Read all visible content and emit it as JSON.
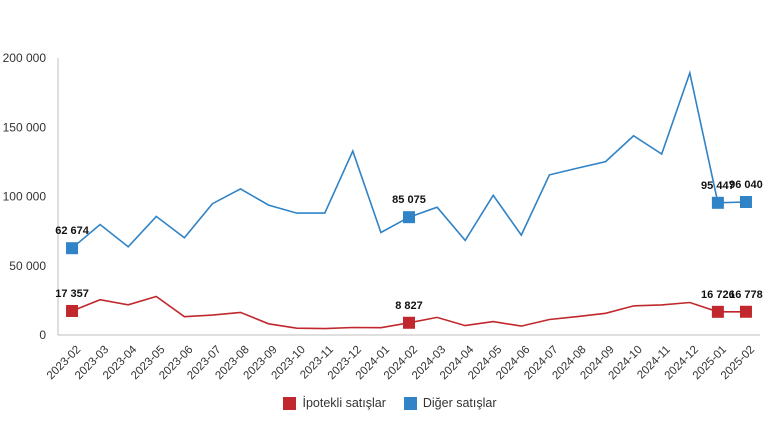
{
  "chart_data": {
    "type": "line",
    "categories": [
      "2023-02",
      "2023-03",
      "2023-04",
      "2023-05",
      "2023-06",
      "2023-07",
      "2023-08",
      "2023-09",
      "2023-10",
      "2023-11",
      "2023-12",
      "2024-01",
      "2024-02",
      "2024-03",
      "2024-04",
      "2024-05",
      "2024-06",
      "2024-07",
      "2024-08",
      "2024-09",
      "2024-10",
      "2024-11",
      "2024-12",
      "2025-01",
      "2025-02"
    ],
    "ylim": [
      0,
      200000
    ],
    "yticks": [
      0,
      50000,
      100000,
      150000,
      200000
    ],
    "ytick_labels": [
      "0",
      "50 000",
      "100 000",
      "150 000",
      "200 000"
    ],
    "grid": false,
    "legend_position": "bottom",
    "series": [
      {
        "name": "İpotekli satışlar",
        "color": "#c0282d",
        "values": [
          17357,
          25500,
          21800,
          27800,
          13200,
          14400,
          16300,
          8100,
          4900,
          4600,
          5400,
          5300,
          8827,
          12700,
          6800,
          9700,
          6400,
          11200,
          13300,
          15700,
          21000,
          21700,
          23500,
          16726,
          16778
        ],
        "labels": [
          {
            "index": 0,
            "text": "17 357"
          },
          {
            "index": 12,
            "text": "8 827"
          },
          {
            "index": 23,
            "text": "16 726"
          },
          {
            "index": 24,
            "text": "16 778"
          }
        ]
      },
      {
        "name": "Diğer satışlar",
        "color": "#2f83c6",
        "values": [
          62674,
          79800,
          63700,
          85600,
          70200,
          94800,
          105500,
          93800,
          88000,
          88000,
          132800,
          74000,
          85075,
          92300,
          68300,
          100900,
          72100,
          115600,
          120500,
          125200,
          143800,
          130700,
          189200,
          95447,
          96040
        ],
        "labels": [
          {
            "index": 0,
            "text": "62 674"
          },
          {
            "index": 12,
            "text": "85 075"
          },
          {
            "index": 23,
            "text": "95 447"
          },
          {
            "index": 24,
            "text": "96 040"
          }
        ]
      }
    ]
  }
}
